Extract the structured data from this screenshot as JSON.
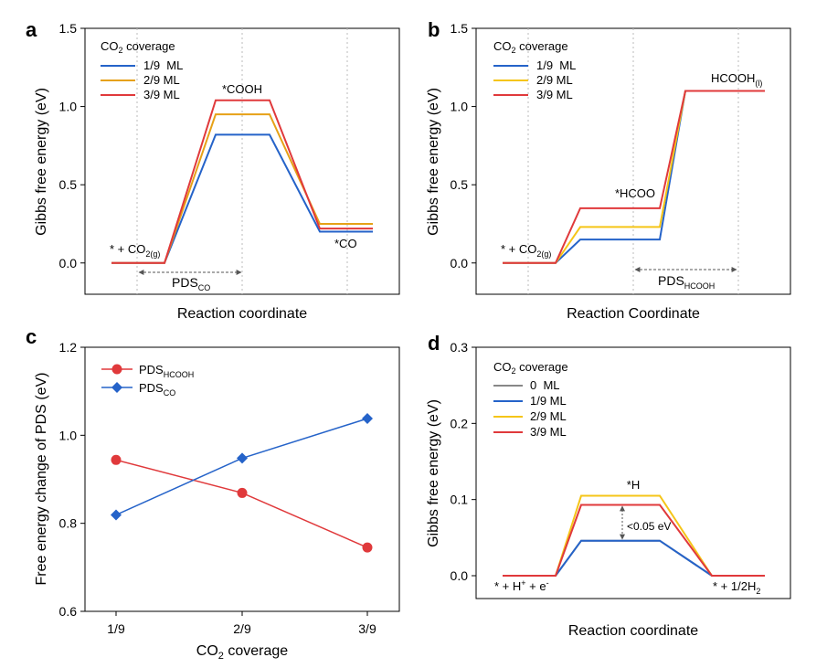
{
  "chart_data": [
    {
      "type": "line",
      "panel": "a",
      "xlabel": "Reaction coordinate",
      "ylabel": "Gibbs free energy (eV)",
      "ylim": [
        -0.2,
        1.5
      ],
      "yticks": [
        "0.0",
        "0.5",
        "1.0",
        "1.5"
      ],
      "x": [
        0,
        1,
        2,
        3,
        4,
        5,
        6,
        7,
        8,
        9
      ],
      "legend_title": "CO2 coverage",
      "legend_position": "top-left",
      "series": [
        {
          "name": "1/9  ML",
          "color": "#2563c9",
          "values": [
            0,
            0,
            0,
            0,
            0.82,
            0.82,
            0.82,
            0.2,
            0.2,
            0.2
          ]
        },
        {
          "name": "2/9 ML",
          "color": "#e6a117",
          "values": [
            0,
            0,
            0,
            0,
            0.95,
            0.95,
            0.95,
            0.25,
            0.25,
            0.25
          ]
        },
        {
          "name": "3/9 ML",
          "color": "#e0393b",
          "values": [
            0,
            0,
            0,
            0,
            1.04,
            1.04,
            1.04,
            0.22,
            0.22,
            0.22
          ]
        }
      ],
      "annotations": {
        "start": "* + CO2(g)",
        "mid": "*COOH",
        "end": "*CO",
        "pds": "PDSCO"
      }
    },
    {
      "type": "line",
      "panel": "b",
      "xlabel": "Reaction Coordinate",
      "ylabel": "Gibbs free energy (eV)",
      "ylim": [
        -0.2,
        1.5
      ],
      "yticks": [
        "0.0",
        "0.5",
        "1.0",
        "1.5"
      ],
      "legend_title": "CO2 coverage",
      "legend_position": "top-left",
      "series": [
        {
          "name": "1/9  ML",
          "color": "#2563c9",
          "values": [
            0,
            0,
            0.15,
            0.15,
            1.1,
            1.1
          ]
        },
        {
          "name": "2/9 ML",
          "color": "#f5c518",
          "values": [
            0,
            0,
            0.23,
            0.23,
            1.1,
            1.1
          ]
        },
        {
          "name": "3/9 ML",
          "color": "#e0393b",
          "values": [
            0,
            0,
            0.35,
            0.35,
            1.1,
            1.1
          ]
        }
      ],
      "annotations": {
        "start": "* + CO2(g)",
        "mid": "*HCOO",
        "end": "HCOOH(l)",
        "pds": "PDSHCOOH"
      }
    },
    {
      "type": "line",
      "panel": "c",
      "xlabel": "CO2 coverage",
      "ylabel": "Free energy change of PDS (eV)",
      "categories": [
        "1/9",
        "2/9",
        "3/9"
      ],
      "ylim": [
        0.6,
        1.2
      ],
      "yticks": [
        "0.6",
        "0.8",
        "1.0",
        "1.2"
      ],
      "legend_position": "top-left",
      "series": [
        {
          "name": "PDSHCOOH",
          "color": "#e0393b",
          "marker": "circle",
          "values": [
            0.944,
            0.869,
            0.745
          ]
        },
        {
          "name": "PDSCO",
          "color": "#2563c9",
          "marker": "diamond",
          "values": [
            0.819,
            0.948,
            1.038
          ]
        }
      ]
    },
    {
      "type": "line",
      "panel": "d",
      "xlabel": "Reaction coordinate",
      "ylabel": "Gibbs free energy (eV)",
      "ylim": [
        -0.03,
        0.3
      ],
      "yticks": [
        "0.0",
        "0.1",
        "0.2",
        "0.3"
      ],
      "legend_title": "CO2 coverage",
      "legend_position": "top-left",
      "series": [
        {
          "name": "0  ML",
          "color": "#888888",
          "values": [
            0,
            0,
            0.046,
            0.046,
            0,
            0
          ]
        },
        {
          "name": "1/9 ML",
          "color": "#2563c9",
          "values": [
            0,
            0,
            0.046,
            0.046,
            0,
            0
          ]
        },
        {
          "name": "2/9 ML",
          "color": "#f5c518",
          "values": [
            0,
            0,
            0.105,
            0.105,
            0,
            0
          ]
        },
        {
          "name": "3/9 ML",
          "color": "#e0393b",
          "values": [
            0,
            0,
            0.093,
            0.093,
            0,
            0
          ]
        }
      ],
      "annotations": {
        "start": "* + H+ + e-",
        "mid": "*H",
        "end": "* + 1/2H2",
        "gap": "<0.05 eV"
      }
    }
  ],
  "labels": {
    "a": {
      "panel": "a",
      "ylabel": "Gibbs free energy (eV)",
      "xlabel": "Reaction coordinate",
      "legend_co2": "CO",
      "legend_sub": "2",
      "legend_rest": " coverage",
      "l1": "1/9  ML",
      "l2": "2/9 ML",
      "l3": "3/9 ML",
      "s_pre": "* + CO",
      "s_sub": "2(g)",
      "mid": "*COOH",
      "end": "*CO",
      "pds": "PDS",
      "pds_sub": "CO"
    },
    "b": {
      "panel": "b",
      "ylabel": "Gibbs free energy (eV)",
      "xlabel": "Reaction Coordinate",
      "legend_co2": "CO",
      "legend_sub": "2",
      "legend_rest": " coverage",
      "l1": "1/9  ML",
      "l2": "2/9 ML",
      "l3": "3/9 ML",
      "s_pre": "* + CO",
      "s_sub": "2(g)",
      "mid": "*HCOO",
      "end": "HCOOH",
      "end_sub": "(l)",
      "pds": "PDS",
      "pds_sub": "HCOOH"
    },
    "c": {
      "panel": "c",
      "ylabel": "Free energy change of PDS (eV)",
      "xlabel_pre": "CO",
      "xlabel_sub": "2",
      "xlabel_rest": " coverage",
      "l1": "PDS",
      "l1_sub": "HCOOH",
      "l2": "PDS",
      "l2_sub": "CO"
    },
    "d": {
      "panel": "d",
      "ylabel": "Gibbs free energy (eV)",
      "xlabel": "Reaction coordinate",
      "legend_co2": "CO",
      "legend_sub": "2",
      "legend_rest": " coverage",
      "l0": "0  ML",
      "l1": "1/9 ML",
      "l2": "2/9 ML",
      "l3": "3/9 ML",
      "mid": "*H",
      "gap": "<0.05 eV",
      "s1": "* + H",
      "s_sup1": "+",
      "s2": " + e",
      "s_sup2": "-",
      "e1": "* + 1/2H",
      "e_sub": "2"
    }
  }
}
